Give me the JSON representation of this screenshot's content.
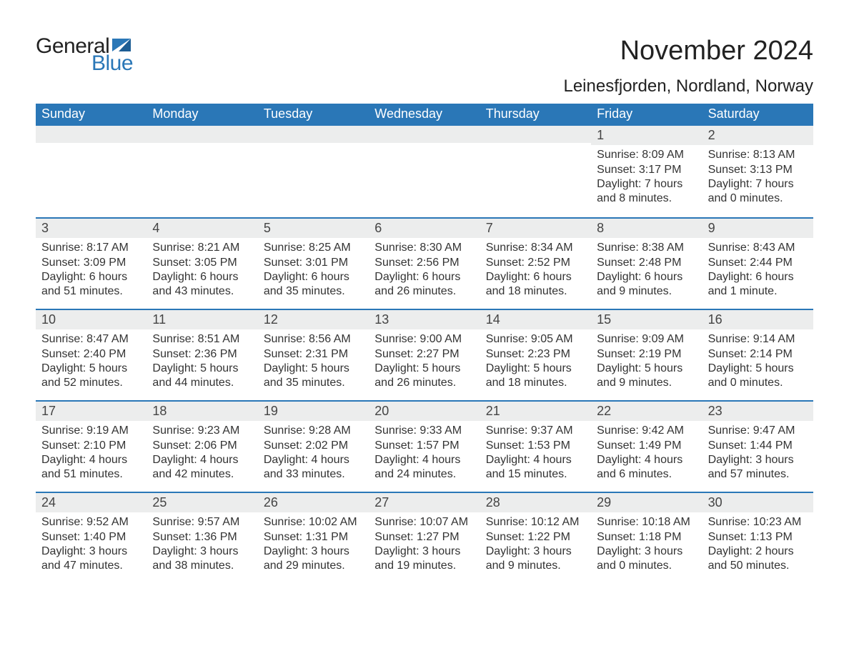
{
  "logo": {
    "text1": "General",
    "text2": "Blue",
    "flag_color": "#2a77b7"
  },
  "title": "November 2024",
  "location": "Leinesfjorden, Nordland, Norway",
  "colors": {
    "header_bg": "#2a77b7",
    "header_text": "#ffffff",
    "daynum_bg": "#eceded",
    "week_border": "#2a77b7",
    "body_text": "#333333",
    "page_bg": "#ffffff"
  },
  "fonts": {
    "title_size_pt": 28,
    "location_size_pt": 18,
    "dow_size_pt": 14,
    "body_size_pt": 12
  },
  "days_of_week": [
    "Sunday",
    "Monday",
    "Tuesday",
    "Wednesday",
    "Thursday",
    "Friday",
    "Saturday"
  ],
  "labels": {
    "sunrise": "Sunrise:",
    "sunset": "Sunset:",
    "daylight": "Daylight:"
  },
  "weeks": [
    [
      null,
      null,
      null,
      null,
      null,
      {
        "n": "1",
        "sunrise": "8:09 AM",
        "sunset": "3:17 PM",
        "daylight": "7 hours and 8 minutes."
      },
      {
        "n": "2",
        "sunrise": "8:13 AM",
        "sunset": "3:13 PM",
        "daylight": "7 hours and 0 minutes."
      }
    ],
    [
      {
        "n": "3",
        "sunrise": "8:17 AM",
        "sunset": "3:09 PM",
        "daylight": "6 hours and 51 minutes."
      },
      {
        "n": "4",
        "sunrise": "8:21 AM",
        "sunset": "3:05 PM",
        "daylight": "6 hours and 43 minutes."
      },
      {
        "n": "5",
        "sunrise": "8:25 AM",
        "sunset": "3:01 PM",
        "daylight": "6 hours and 35 minutes."
      },
      {
        "n": "6",
        "sunrise": "8:30 AM",
        "sunset": "2:56 PM",
        "daylight": "6 hours and 26 minutes."
      },
      {
        "n": "7",
        "sunrise": "8:34 AM",
        "sunset": "2:52 PM",
        "daylight": "6 hours and 18 minutes."
      },
      {
        "n": "8",
        "sunrise": "8:38 AM",
        "sunset": "2:48 PM",
        "daylight": "6 hours and 9 minutes."
      },
      {
        "n": "9",
        "sunrise": "8:43 AM",
        "sunset": "2:44 PM",
        "daylight": "6 hours and 1 minute."
      }
    ],
    [
      {
        "n": "10",
        "sunrise": "8:47 AM",
        "sunset": "2:40 PM",
        "daylight": "5 hours and 52 minutes."
      },
      {
        "n": "11",
        "sunrise": "8:51 AM",
        "sunset": "2:36 PM",
        "daylight": "5 hours and 44 minutes."
      },
      {
        "n": "12",
        "sunrise": "8:56 AM",
        "sunset": "2:31 PM",
        "daylight": "5 hours and 35 minutes."
      },
      {
        "n": "13",
        "sunrise": "9:00 AM",
        "sunset": "2:27 PM",
        "daylight": "5 hours and 26 minutes."
      },
      {
        "n": "14",
        "sunrise": "9:05 AM",
        "sunset": "2:23 PM",
        "daylight": "5 hours and 18 minutes."
      },
      {
        "n": "15",
        "sunrise": "9:09 AM",
        "sunset": "2:19 PM",
        "daylight": "5 hours and 9 minutes."
      },
      {
        "n": "16",
        "sunrise": "9:14 AM",
        "sunset": "2:14 PM",
        "daylight": "5 hours and 0 minutes."
      }
    ],
    [
      {
        "n": "17",
        "sunrise": "9:19 AM",
        "sunset": "2:10 PM",
        "daylight": "4 hours and 51 minutes."
      },
      {
        "n": "18",
        "sunrise": "9:23 AM",
        "sunset": "2:06 PM",
        "daylight": "4 hours and 42 minutes."
      },
      {
        "n": "19",
        "sunrise": "9:28 AM",
        "sunset": "2:02 PM",
        "daylight": "4 hours and 33 minutes."
      },
      {
        "n": "20",
        "sunrise": "9:33 AM",
        "sunset": "1:57 PM",
        "daylight": "4 hours and 24 minutes."
      },
      {
        "n": "21",
        "sunrise": "9:37 AM",
        "sunset": "1:53 PM",
        "daylight": "4 hours and 15 minutes."
      },
      {
        "n": "22",
        "sunrise": "9:42 AM",
        "sunset": "1:49 PM",
        "daylight": "4 hours and 6 minutes."
      },
      {
        "n": "23",
        "sunrise": "9:47 AM",
        "sunset": "1:44 PM",
        "daylight": "3 hours and 57 minutes."
      }
    ],
    [
      {
        "n": "24",
        "sunrise": "9:52 AM",
        "sunset": "1:40 PM",
        "daylight": "3 hours and 47 minutes."
      },
      {
        "n": "25",
        "sunrise": "9:57 AM",
        "sunset": "1:36 PM",
        "daylight": "3 hours and 38 minutes."
      },
      {
        "n": "26",
        "sunrise": "10:02 AM",
        "sunset": "1:31 PM",
        "daylight": "3 hours and 29 minutes."
      },
      {
        "n": "27",
        "sunrise": "10:07 AM",
        "sunset": "1:27 PM",
        "daylight": "3 hours and 19 minutes."
      },
      {
        "n": "28",
        "sunrise": "10:12 AM",
        "sunset": "1:22 PM",
        "daylight": "3 hours and 9 minutes."
      },
      {
        "n": "29",
        "sunrise": "10:18 AM",
        "sunset": "1:18 PM",
        "daylight": "3 hours and 0 minutes."
      },
      {
        "n": "30",
        "sunrise": "10:23 AM",
        "sunset": "1:13 PM",
        "daylight": "2 hours and 50 minutes."
      }
    ]
  ]
}
